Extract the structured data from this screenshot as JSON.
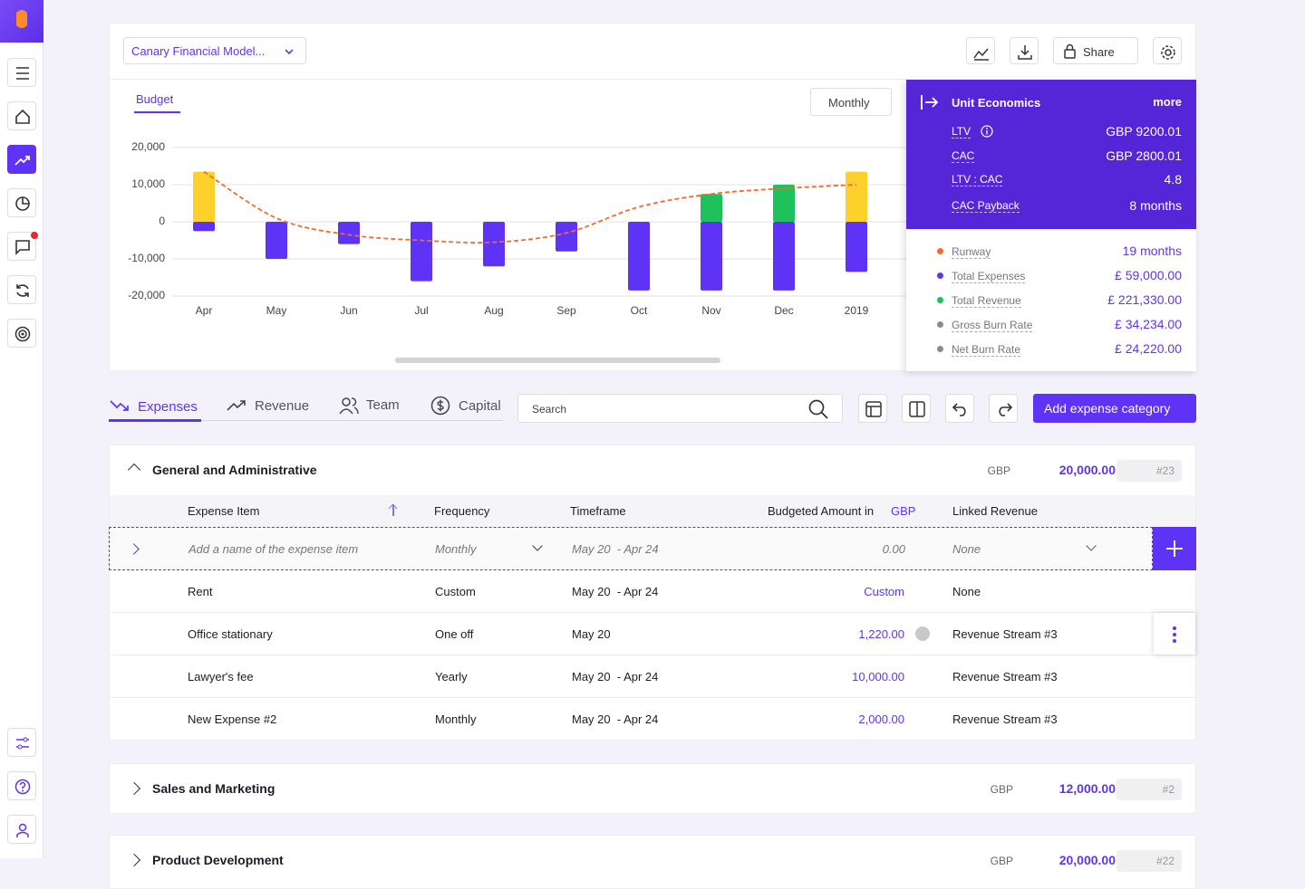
{
  "header": {
    "model_name": "Canary Financial Model...",
    "share": "Share"
  },
  "chart_tab": "Budget",
  "period": "Monthly",
  "chart_data": {
    "type": "bar",
    "categories": [
      "Apr",
      "May",
      "Jun",
      "Jul",
      "Aug",
      "Sep",
      "Oct",
      "Nov",
      "Dec",
      "2019"
    ],
    "series": [
      {
        "type": "bar",
        "color": "#5f33f5",
        "values": [
          -2500,
          -10000,
          -6000,
          -16000,
          -12000,
          -8000,
          -18500,
          -18500,
          -18500,
          -13500
        ]
      },
      {
        "type": "bar",
        "color": "#fdd12c",
        "values": [
          13500,
          null,
          null,
          null,
          null,
          null,
          null,
          null,
          null,
          13500
        ]
      },
      {
        "type": "bar",
        "color": "#1dc25a",
        "values": [
          null,
          null,
          null,
          null,
          null,
          null,
          null,
          7500,
          10000,
          null
        ]
      },
      {
        "type": "line",
        "color": "#f26b2d",
        "values": [
          13500,
          1000,
          -3500,
          -5000,
          -5500,
          -3000,
          4000,
          7500,
          9000,
          10000
        ]
      }
    ],
    "ylim": [
      -20000,
      20000
    ],
    "yticks": [
      {
        "value": -20000,
        "label": "-20,000"
      },
      {
        "value": -10000,
        "label": "-10,000"
      },
      0,
      {
        "value": 10000,
        "label": "10,000"
      },
      {
        "value": 20000,
        "label": "20,000"
      }
    ],
    "grid": true
  },
  "unit_economics": {
    "title": "Unit Economics",
    "more": "more",
    "rows": [
      {
        "label": "LTV",
        "value": "GBP 9200.01"
      },
      {
        "label": "CAC",
        "value": "GBP 2800.01"
      },
      {
        "label": "LTV : CAC",
        "value": "4.8"
      },
      {
        "label": "CAC Payback",
        "value": "8 months"
      }
    ]
  },
  "metrics": [
    {
      "label": "Runway",
      "value": "19 months",
      "color": "#f26b2d"
    },
    {
      "label": "Total Expenses",
      "value": "£ 59,000.00",
      "color": "#5f33f5"
    },
    {
      "label": "Total Revenue",
      "value": "£ 221,330.00",
      "color": "#1dc25a"
    },
    {
      "label": "Gross Burn Rate",
      "value": "£ 34,234.00",
      "color": "#8a8a8a"
    },
    {
      "label": "Net Burn Rate",
      "value": "£ 24,220.00",
      "color": "#8a8a8a"
    }
  ],
  "tabs": [
    "Expenses",
    "Revenue",
    "Team",
    "Capital"
  ],
  "search_placeholder": "Search",
  "add_button": "Add expense category",
  "sections": [
    {
      "name": "General and Administrative",
      "currency": "GBP",
      "amount": "20,000.00",
      "count": "#23"
    },
    {
      "name": "Sales and Marketing",
      "currency": "GBP",
      "amount": "12,000.00",
      "count": "#2"
    },
    {
      "name": "Product Development",
      "currency": "GBP",
      "amount": "20,000.00",
      "count": "#22"
    }
  ],
  "table": {
    "columns": [
      "Expense Item",
      "Frequency",
      "Timeframe",
      "Budgeted Amount in",
      "GBP",
      "Linked Revenue"
    ],
    "new_row": [
      "Add a name of the expense item",
      "Monthly",
      "May 20  - Apr 24",
      "0.00",
      "None"
    ],
    "rows": [
      [
        "Rent",
        "Custom",
        "May 20  - Apr 24",
        "Custom",
        "None"
      ],
      [
        "Office stationary",
        "One off",
        "May 20",
        "1,220.00",
        "Revenue Stream #3"
      ],
      [
        "Lawyer's fee",
        "Yearly",
        "May 20  - Apr 24",
        "10,000.00",
        "Revenue Stream #3"
      ],
      [
        "New Expense #2",
        "Monthly",
        "May 20  - Apr 24",
        "2,000.00",
        "Revenue Stream #3"
      ]
    ]
  }
}
